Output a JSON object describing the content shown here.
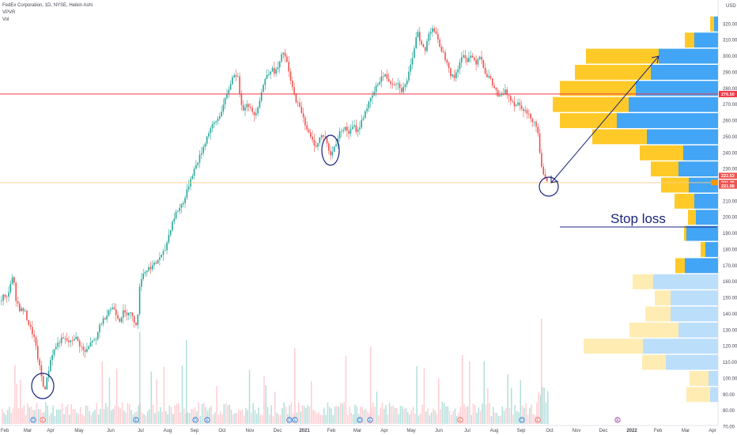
{
  "header": {
    "title": "FedEx Corporation, 1D, NYSE, Heikin Ashi",
    "indicator1": "VPVR",
    "indicator2": "Vol",
    "currency": "USD"
  },
  "annotation": {
    "stop_loss_text": "Stop loss"
  },
  "colors": {
    "up": "#26a69a",
    "down": "#ef5350",
    "poc_up": "#42a5f5",
    "poc_down": "#ffca28",
    "red_line": "#f23645",
    "annot": "#1a237e"
  },
  "chart_data": {
    "type": "candlestick",
    "title": "FedEx Corporation, 1D, NYSE, Heikin Ashi",
    "y_ticks": [
      320,
      310,
      300,
      290,
      280,
      270,
      260,
      250,
      240,
      230,
      220,
      210,
      200,
      190,
      180,
      170,
      160,
      150,
      140,
      130,
      120,
      110,
      100,
      90,
      80,
      70
    ],
    "ylim": [
      68,
      323
    ],
    "x_ticks": [
      "Feb",
      "Mar",
      "Apr",
      "May",
      "Jun",
      "Jul",
      "Aug",
      "Sep",
      "Oct",
      "Nov",
      "Dec",
      "2021",
      "Feb",
      "Mar",
      "Apr",
      "May",
      "Jun",
      "Jul",
      "Aug",
      "Sep",
      "Oct",
      "Nov",
      "Dec",
      "2022",
      "Feb",
      "Mar",
      "Apr"
    ],
    "price_path": [
      [
        0,
        148
      ],
      [
        4,
        152
      ],
      [
        7,
        148
      ],
      [
        13,
        160
      ],
      [
        16,
        163
      ],
      [
        19,
        150
      ],
      [
        24,
        143
      ],
      [
        30,
        142
      ],
      [
        36,
        133
      ],
      [
        42,
        126
      ],
      [
        48,
        110
      ],
      [
        52,
        100
      ],
      [
        55,
        92
      ],
      [
        58,
        98
      ],
      [
        64,
        114
      ],
      [
        70,
        120
      ],
      [
        76,
        124
      ],
      [
        82,
        124
      ],
      [
        88,
        122
      ],
      [
        94,
        126
      ],
      [
        100,
        121
      ],
      [
        106,
        116
      ],
      [
        110,
        118
      ],
      [
        116,
        124
      ],
      [
        120,
        122
      ],
      [
        125,
        133
      ],
      [
        131,
        137
      ],
      [
        137,
        143
      ],
      [
        143,
        144
      ],
      [
        150,
        136
      ],
      [
        155,
        141
      ],
      [
        158,
        140
      ],
      [
        163,
        142
      ],
      [
        168,
        136
      ],
      [
        172,
        134
      ],
      [
        174,
        140
      ],
      [
        176,
        160
      ],
      [
        180,
        165
      ],
      [
        186,
        168
      ],
      [
        192,
        170
      ],
      [
        196,
        171
      ],
      [
        200,
        175
      ],
      [
        204,
        176
      ],
      [
        208,
        180
      ],
      [
        212,
        188
      ],
      [
        217,
        197
      ],
      [
        222,
        203
      ],
      [
        228,
        207
      ],
      [
        234,
        213
      ],
      [
        240,
        224
      ],
      [
        246,
        231
      ],
      [
        252,
        238
      ],
      [
        258,
        246
      ],
      [
        264,
        254
      ],
      [
        270,
        258
      ],
      [
        276,
        262
      ],
      [
        281,
        269
      ],
      [
        286,
        275
      ],
      [
        291,
        284
      ],
      [
        296,
        290
      ],
      [
        300,
        286
      ],
      [
        304,
        272
      ],
      [
        308,
        266
      ],
      [
        312,
        272
      ],
      [
        316,
        267
      ],
      [
        320,
        263
      ],
      [
        324,
        267
      ],
      [
        328,
        274
      ],
      [
        332,
        282
      ],
      [
        337,
        289
      ],
      [
        342,
        292
      ],
      [
        347,
        290
      ],
      [
        352,
        294
      ],
      [
        357,
        303
      ],
      [
        361,
        298
      ],
      [
        366,
        286
      ],
      [
        371,
        276
      ],
      [
        376,
        270
      ],
      [
        381,
        265
      ],
      [
        386,
        257
      ],
      [
        391,
        250
      ],
      [
        396,
        246
      ],
      [
        400,
        244
      ],
      [
        404,
        250
      ],
      [
        408,
        251
      ],
      [
        412,
        248
      ],
      [
        416,
        238
      ],
      [
        419,
        240
      ],
      [
        423,
        245
      ],
      [
        427,
        250
      ],
      [
        431,
        255
      ],
      [
        436,
        255
      ],
      [
        441,
        252
      ],
      [
        446,
        257
      ],
      [
        451,
        253
      ],
      [
        456,
        259
      ],
      [
        461,
        266
      ],
      [
        466,
        271
      ],
      [
        471,
        276
      ],
      [
        476,
        282
      ],
      [
        481,
        287
      ],
      [
        486,
        288
      ],
      [
        491,
        285
      ],
      [
        496,
        283
      ],
      [
        500,
        284
      ],
      [
        504,
        282
      ],
      [
        507,
        279
      ],
      [
        511,
        281
      ],
      [
        516,
        289
      ],
      [
        521,
        298
      ],
      [
        524,
        309
      ],
      [
        527,
        317
      ],
      [
        532,
        307
      ],
      [
        537,
        303
      ],
      [
        541,
        314
      ],
      [
        546,
        318
      ],
      [
        550,
        314
      ],
      [
        553,
        309
      ],
      [
        557,
        305
      ],
      [
        561,
        300
      ],
      [
        565,
        297
      ],
      [
        569,
        289
      ],
      [
        573,
        286
      ],
      [
        577,
        291
      ],
      [
        581,
        297
      ],
      [
        585,
        300
      ],
      [
        589,
        297
      ],
      [
        593,
        301
      ],
      [
        597,
        299
      ],
      [
        601,
        296
      ],
      [
        606,
        301
      ],
      [
        610,
        295
      ],
      [
        614,
        288
      ],
      [
        618,
        287
      ],
      [
        622,
        282
      ],
      [
        626,
        279
      ],
      [
        630,
        274
      ],
      [
        634,
        276
      ],
      [
        638,
        278
      ],
      [
        642,
        276
      ],
      [
        646,
        273
      ],
      [
        650,
        270
      ],
      [
        654,
        271
      ],
      [
        658,
        269
      ],
      [
        662,
        267
      ],
      [
        666,
        264
      ],
      [
        670,
        262
      ],
      [
        674,
        260
      ],
      [
        678,
        256
      ],
      [
        680,
        250
      ],
      [
        682,
        240
      ],
      [
        684,
        233
      ],
      [
        686,
        226
      ],
      [
        688,
        224
      ],
      [
        690,
        222
      ],
      [
        692,
        221
      ]
    ],
    "volume_profile": {
      "rows": [
        {
          "price": 320,
          "up": 5,
          "down": 5
        },
        {
          "price": 310,
          "up": 12,
          "down": 30
        },
        {
          "price": 300,
          "up": 92,
          "down": 75
        },
        {
          "price": 290,
          "up": 96,
          "down": 85
        },
        {
          "price": 280,
          "up": 96,
          "down": 104
        },
        {
          "price": 270,
          "up": 96,
          "down": 113
        },
        {
          "price": 260,
          "up": 72,
          "down": 128
        },
        {
          "price": 250,
          "up": 69,
          "down": 90
        },
        {
          "price": 240,
          "up": 55,
          "down": 44
        },
        {
          "price": 230,
          "up": 35,
          "down": 50
        },
        {
          "price": 220,
          "up": 35,
          "down": 37
        },
        {
          "price": 210,
          "up": 25,
          "down": 30
        },
        {
          "price": 200,
          "up": 10,
          "down": 28
        },
        {
          "price": 190,
          "up": 3,
          "down": 40
        },
        {
          "price": 180,
          "up": 6,
          "down": 16
        },
        {
          "price": 170,
          "up": 12,
          "down": 42
        },
        {
          "price": 160,
          "up": 26,
          "down": 82
        },
        {
          "price": 150,
          "up": 20,
          "down": 60
        },
        {
          "price": 140,
          "up": 32,
          "down": 60
        },
        {
          "price": 130,
          "up": 62,
          "down": 50
        },
        {
          "price": 120,
          "up": 75,
          "down": 95
        },
        {
          "price": 110,
          "up": 30,
          "down": 66
        },
        {
          "price": 100,
          "up": 24,
          "down": 12
        },
        {
          "price": 90,
          "up": 30,
          "down": 10
        }
      ]
    },
    "horizontal_lines": [
      {
        "price": 276.5,
        "label": "276.50",
        "color": "#f23645"
      },
      {
        "price": 221.5,
        "label": "",
        "color": "#ffcc80"
      }
    ],
    "price_tags": [
      {
        "price": 225.8,
        "label": "222.53",
        "color": "#ef5350"
      },
      {
        "price": 221.4,
        "label": "221.25",
        "color": "#ef5350"
      },
      {
        "price": 219.6,
        "label": "221.98",
        "color": "#ef5350"
      }
    ],
    "volume_bars_note": "daily volume"
  }
}
